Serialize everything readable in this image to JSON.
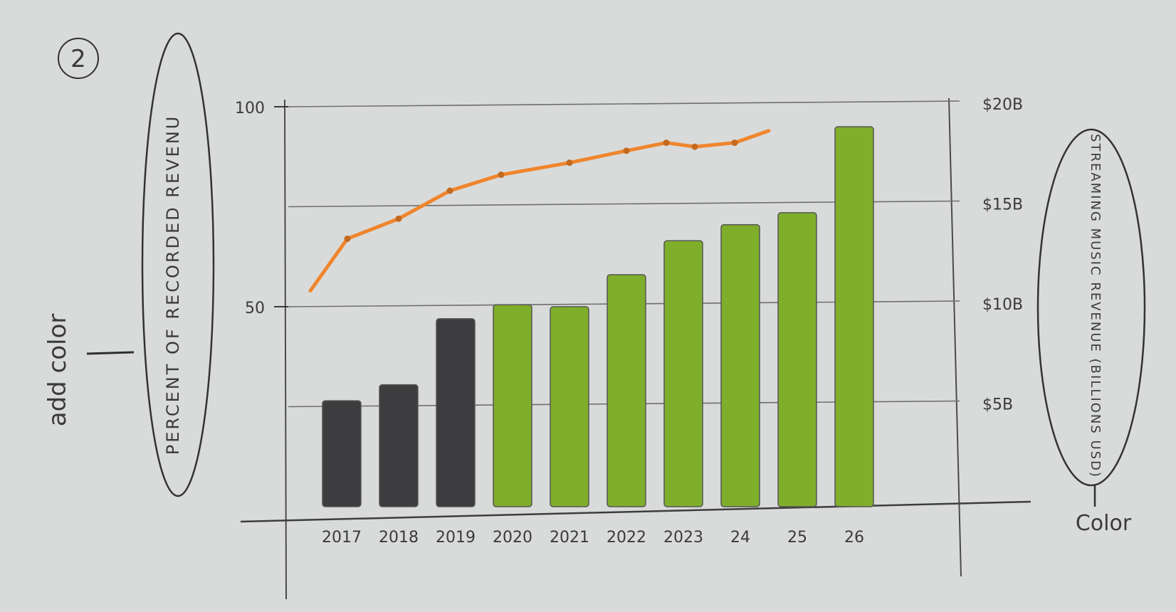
{
  "annotations": {
    "step_number": "2",
    "add_color_note": "add color",
    "color_note": "Color"
  },
  "chart_data": {
    "type": "bar",
    "categories": [
      "2017",
      "2018",
      "2019",
      "2020",
      "2021",
      "2022",
      "2023",
      "24",
      "25",
      "26"
    ],
    "series": [
      {
        "values": [
          5.3,
          6.1,
          9.4,
          10.1,
          10.0,
          11.6,
          13.3,
          14.1,
          14.7,
          19.0
        ],
        "colors": [
          "#3d3d3f",
          "#3d3d3f",
          "#3d3d3f",
          "#7fae2b",
          "#7fae2b",
          "#7fae2b",
          "#7fae2b",
          "#7fae2b",
          "#7fae2b",
          "#7fae2b"
        ]
      },
      {
        "type": "line",
        "axis": "left",
        "color": "#f0852d",
        "x": [
          2016.45,
          2017.1,
          2018.0,
          2018.9,
          2019.8,
          2021.0,
          2022.0,
          2022.7,
          2023.2,
          2023.9,
          2024.5
        ],
        "values": [
          54,
          67,
          72,
          79,
          83,
          86,
          89,
          91,
          90,
          91,
          94
        ]
      }
    ],
    "left_axis": {
      "label": "PERCENT OF RECORDED REVENU",
      "ticks": [
        "50",
        "100"
      ],
      "ylim": [
        0,
        100
      ]
    },
    "right_axis": {
      "label": "STREAMING MUSIC REVENUE (BILLIONS USD)",
      "ticks": [
        "$5B",
        "$10B",
        "$15B",
        "$20B"
      ],
      "ylim": [
        0,
        20
      ]
    },
    "grid": true
  }
}
